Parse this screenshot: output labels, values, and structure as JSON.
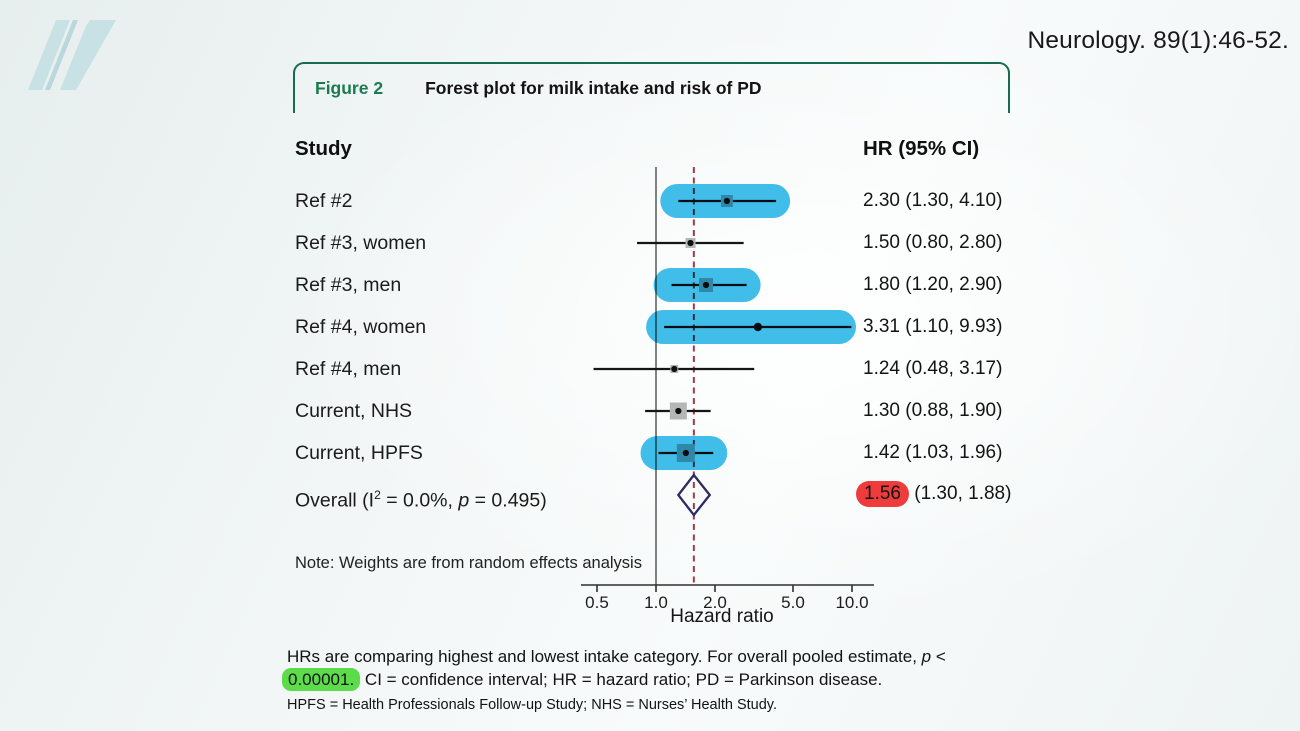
{
  "header": {
    "citation": "Neurology. 89(1):46-52."
  },
  "logo": {
    "name": "neurology-n-logo"
  },
  "figure": {
    "label": "Figure 2",
    "title": "Forest plot for milk intake and risk of PD"
  },
  "columns": {
    "study": "Study",
    "hr": "HR (95% CI)"
  },
  "note": "Note: Weights are from random effects analysis",
  "caption": {
    "line1_text": "HRs are comparing highest and lowest intake category. For overall pooled estimate, ",
    "line1_italic": "p",
    "line1_tail": " <",
    "line2_highlight": "0.00001.",
    "line2_text": " CI = confidence interval; HR = hazard ratio; PD = Parkinson disease.",
    "line3": "HPFS = Health Professionals Follow-up Study;  NHS = Nurses’ Health Study."
  },
  "colors": {
    "figure_green": "#1b7a52",
    "border_green": "#186b4c",
    "highlight_cyan": "#41bde9",
    "highlight_red": "#ee3b3b",
    "highlight_green": "#5ddc4b",
    "pooled_line_red": "#a23c49",
    "reference_line_gray": "#5a5a5a",
    "diamond_navy": "#2c2c63",
    "logo_teal": "#c7e1e4"
  },
  "chart_data": {
    "type": "forest",
    "title": "Forest plot for milk intake and risk of PD",
    "xlabel": "Hazard ratio",
    "x_scale": "log10",
    "x_ticks": [
      0.5,
      1.0,
      2.0,
      5.0,
      10.0
    ],
    "x_tick_labels": [
      "0.5",
      "1.0",
      "2.0",
      "5.0",
      "10.0"
    ],
    "x_range": [
      0.4,
      12
    ],
    "reference_line": 1.0,
    "pooled_estimate_line": 1.56,
    "rows": [
      {
        "study": "Ref #2",
        "hr": 2.3,
        "ci_low": 1.3,
        "ci_high": 4.1,
        "hr_label": "2.30 (1.30, 4.10)",
        "highlighted": true,
        "marker_size": 12
      },
      {
        "study": "Ref #3, women",
        "hr": 1.5,
        "ci_low": 0.8,
        "ci_high": 2.8,
        "hr_label": "1.50 (0.80, 2.80)",
        "highlighted": false,
        "marker_size": 10
      },
      {
        "study": "Ref #3, men",
        "hr": 1.8,
        "ci_low": 1.2,
        "ci_high": 2.9,
        "hr_label": "1.80 (1.20, 2.90)",
        "highlighted": true,
        "marker_size": 14
      },
      {
        "study": "Ref #4, women",
        "hr": 3.31,
        "ci_low": 1.1,
        "ci_high": 9.93,
        "hr_label": "3.31 (1.10, 9.93)",
        "highlighted": true,
        "marker_size": 0
      },
      {
        "study": "Ref #4, men",
        "hr": 1.24,
        "ci_low": 0.48,
        "ci_high": 3.17,
        "hr_label": "1.24 (0.48, 3.17)",
        "highlighted": false,
        "marker_size": 8
      },
      {
        "study": "Current, NHS",
        "hr": 1.3,
        "ci_low": 0.88,
        "ci_high": 1.9,
        "hr_label": "1.30 (0.88, 1.90)",
        "highlighted": false,
        "marker_size": 17
      },
      {
        "study": "Current, HPFS",
        "hr": 1.42,
        "ci_low": 1.03,
        "ci_high": 1.96,
        "hr_label": "1.42 (1.03, 1.96)",
        "highlighted": true,
        "marker_size": 18
      }
    ],
    "overall": {
      "label_parts": {
        "prefix": "Overall (I",
        "sup": "2",
        "mid": " = 0.0%, ",
        "italic": "p",
        "suffix": " = 0.495)"
      },
      "hr": 1.56,
      "ci_low": 1.3,
      "ci_high": 1.88,
      "hr_value": "1.56",
      "hr_ci": " (1.30, 1.88)",
      "heterogeneity_i2": "0.0%",
      "heterogeneity_p": "0.495"
    }
  }
}
